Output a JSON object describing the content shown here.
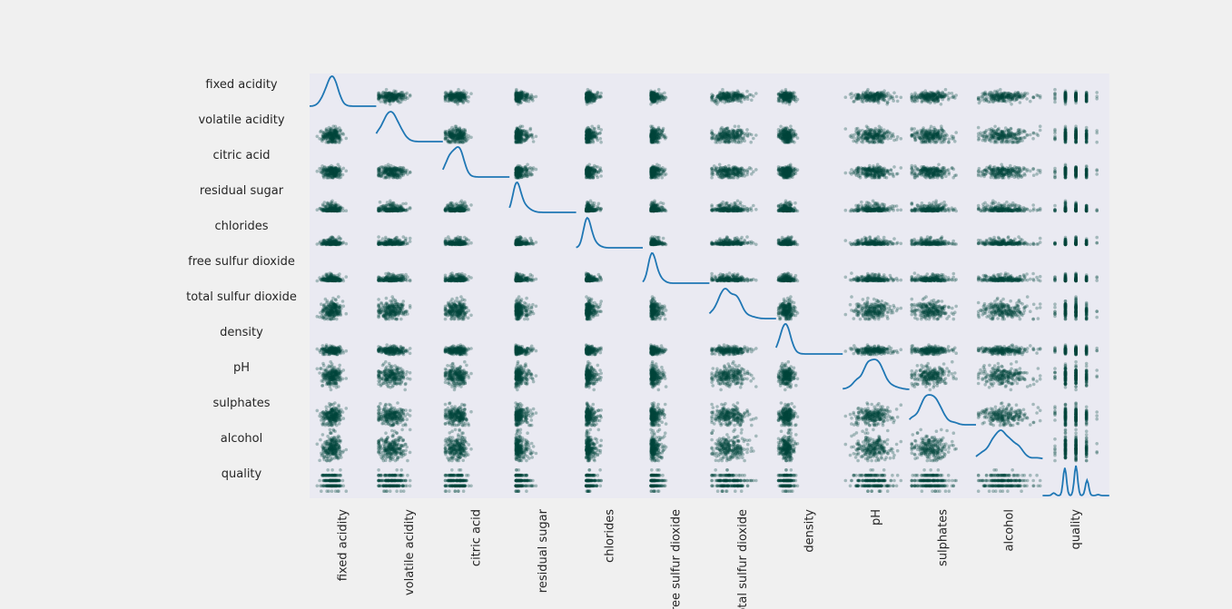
{
  "chart_data": {
    "type": "scatter-matrix",
    "variables": [
      "fixed acidity",
      "volatile acidity",
      "citric acid",
      "residual sugar",
      "chlorides",
      "free sulfur dioxide",
      "total sulfur dioxide",
      "density",
      "pH",
      "sulphates",
      "alcohol",
      "quality"
    ],
    "ranges": {
      "fixed acidity": [
        3.8,
        14.2
      ],
      "volatile acidity": [
        0.08,
        1.1
      ],
      "citric acid": [
        0.0,
        1.66
      ],
      "residual sugar": [
        0.6,
        65.8
      ],
      "chlorides": [
        0.009,
        0.346
      ],
      "free sulfur dioxide": [
        2,
        289
      ],
      "total sulfur dioxide": [
        9,
        440
      ],
      "density": [
        0.987,
        1.039
      ],
      "pH": [
        2.72,
        3.82
      ],
      "sulphates": [
        0.22,
        1.08
      ],
      "alcohol": [
        8.0,
        14.2
      ],
      "quality": [
        3,
        9
      ]
    },
    "diagonal": "kde",
    "marker_color": "#00443a",
    "kde_color": "#1f77b4",
    "panel_background": "#eaeaf2",
    "figure_background": "#f0f0f0",
    "grid": false,
    "legend": "none"
  }
}
